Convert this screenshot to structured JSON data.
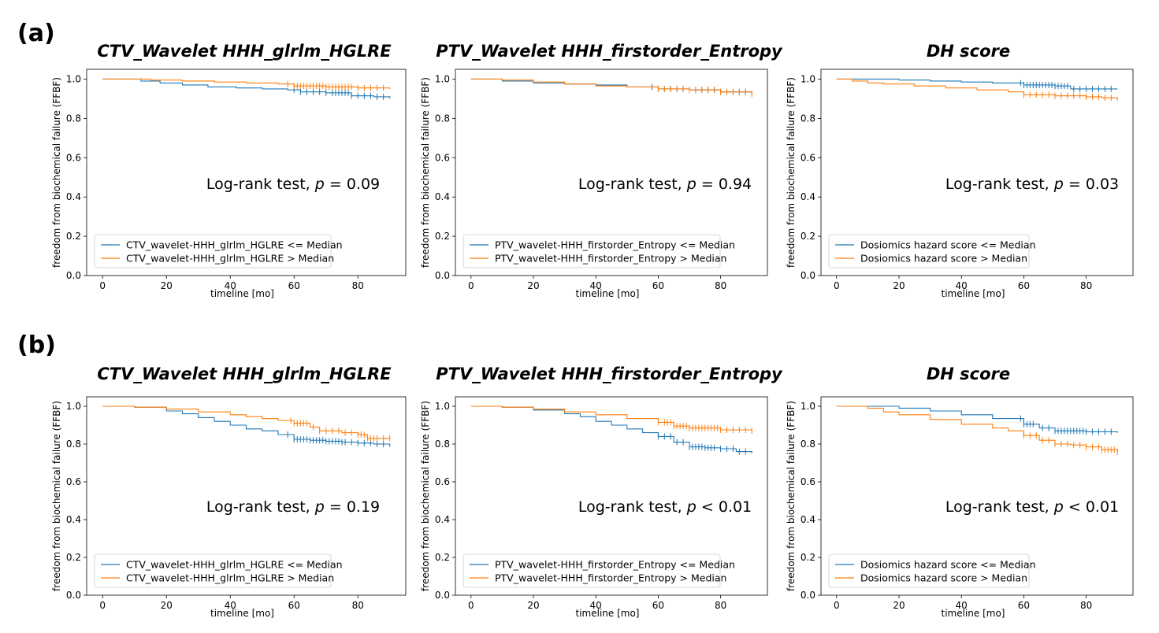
{
  "row_labels": [
    "(a)",
    "(b)"
  ],
  "colors": {
    "below": "#1f77b4",
    "above": "#ff7f0e",
    "axis": "#000000"
  },
  "chart_data": [
    {
      "type": "line",
      "row": 0,
      "col": 0,
      "title": "CTV_Wavelet HHH_glrlm_HGLRE",
      "xlabel": "timeline [mo]",
      "ylabel": "freedom from biochemical failure (FFBF)",
      "xlim": [
        -5,
        95
      ],
      "ylim": [
        0,
        1.05
      ],
      "xticks": [
        0,
        20,
        40,
        60,
        80
      ],
      "yticks": [
        0.0,
        0.2,
        0.4,
        0.6,
        0.8,
        1.0
      ],
      "xtick_labels": [
        "0",
        "20",
        "40",
        "60",
        "80"
      ],
      "ytick_labels": [
        "0.0",
        "0.2",
        "0.4",
        "0.6",
        "0.8",
        "1.0"
      ],
      "annotation": {
        "prefix": "Log-rank test, ",
        "p": "p",
        "suffix": " = 0.09"
      },
      "legend_position": "lower-left",
      "series": [
        {
          "name": "CTV_wavelet-HHH_glrlm_HGLRE <= Median",
          "color": "#1f77b4",
          "x": [
            0,
            12,
            18,
            25,
            33,
            42,
            50,
            58,
            62,
            70,
            78,
            85,
            90
          ],
          "y": [
            1.0,
            0.99,
            0.98,
            0.97,
            0.96,
            0.955,
            0.95,
            0.945,
            0.935,
            0.93,
            0.915,
            0.91,
            0.9
          ],
          "censor_x": [
            60,
            62,
            64,
            66,
            68,
            70,
            72,
            73,
            74,
            75,
            76,
            77,
            78,
            80,
            82,
            84,
            86,
            88
          ]
        },
        {
          "name": "CTV_wavelet-HHH_glrlm_HGLRE > Median",
          "color": "#ff7f0e",
          "x": [
            0,
            15,
            25,
            35,
            45,
            55,
            60,
            70,
            80,
            90
          ],
          "y": [
            1.0,
            0.995,
            0.99,
            0.985,
            0.98,
            0.975,
            0.965,
            0.96,
            0.955,
            0.95
          ],
          "censor_x": [
            58,
            60,
            61,
            62,
            63,
            64,
            65,
            66,
            67,
            68,
            69,
            70,
            71,
            72,
            73,
            74,
            75,
            76,
            77,
            78,
            80,
            82,
            84,
            86,
            88
          ]
        }
      ]
    },
    {
      "type": "line",
      "row": 0,
      "col": 1,
      "title": "PTV_Wavelet HHH_firstorder_Entropy",
      "xlabel": "timeline [mo]",
      "ylabel": "freedom from biochemical failure (FFBF)",
      "xlim": [
        -5,
        95
      ],
      "ylim": [
        0,
        1.05
      ],
      "xticks": [
        0,
        20,
        40,
        60,
        80
      ],
      "yticks": [
        0.0,
        0.2,
        0.4,
        0.6,
        0.8,
        1.0
      ],
      "xtick_labels": [
        "0",
        "20",
        "40",
        "60",
        "80"
      ],
      "ytick_labels": [
        "0.0",
        "0.2",
        "0.4",
        "0.6",
        "0.8",
        "1.0"
      ],
      "annotation": {
        "prefix": "Log-rank test, ",
        "p": "p",
        "suffix": " = 0.94"
      },
      "legend_position": "lower-left",
      "series": [
        {
          "name": "PTV_wavelet-HHH_firstorder_Entropy <= Median",
          "color": "#1f77b4",
          "x": [
            0,
            10,
            20,
            30,
            40,
            50,
            60,
            70,
            80,
            90
          ],
          "y": [
            1.0,
            0.99,
            0.98,
            0.975,
            0.97,
            0.96,
            0.95,
            0.945,
            0.935,
            0.925
          ],
          "censor_x": [
            58,
            60,
            62,
            64,
            66,
            68,
            70,
            72,
            74,
            76,
            78,
            80,
            82,
            84,
            86,
            88
          ]
        },
        {
          "name": "PTV_wavelet-HHH_firstorder_Entropy > Median",
          "color": "#ff7f0e",
          "x": [
            0,
            10,
            20,
            30,
            40,
            50,
            60,
            70,
            80,
            90
          ],
          "y": [
            1.0,
            0.995,
            0.985,
            0.975,
            0.965,
            0.96,
            0.95,
            0.945,
            0.935,
            0.925
          ],
          "censor_x": [
            60,
            62,
            64,
            66,
            68,
            70,
            72,
            74,
            76,
            78,
            80,
            82,
            84,
            86,
            88,
            90
          ]
        }
      ]
    },
    {
      "type": "line",
      "row": 0,
      "col": 2,
      "title": "DH score",
      "xlabel": "timeline [mo]",
      "ylabel": "freedom from biochemical failure (FFBF)",
      "xlim": [
        -5,
        95
      ],
      "ylim": [
        0,
        1.05
      ],
      "xticks": [
        0,
        20,
        40,
        60,
        80
      ],
      "yticks": [
        0.0,
        0.2,
        0.4,
        0.6,
        0.8,
        1.0
      ],
      "xtick_labels": [
        "0",
        "20",
        "40",
        "60",
        "80"
      ],
      "ytick_labels": [
        "0.0",
        "0.2",
        "0.4",
        "0.6",
        "0.8",
        "1.0"
      ],
      "annotation": {
        "prefix": "Log-rank test, ",
        "p": "p",
        "suffix": " = 0.03"
      },
      "legend_position": "lower-left",
      "series": [
        {
          "name": "Dosiomics hazard score <= Median",
          "color": "#1f77b4",
          "x": [
            0,
            10,
            20,
            30,
            40,
            50,
            60,
            70,
            75,
            90
          ],
          "y": [
            1.0,
            1.0,
            0.995,
            0.99,
            0.985,
            0.98,
            0.97,
            0.965,
            0.95,
            0.95
          ],
          "censor_x": [
            59,
            60,
            61,
            62,
            63,
            64,
            65,
            66,
            67,
            68,
            69,
            70,
            71,
            72,
            73,
            74,
            76,
            78,
            80,
            82,
            84,
            86,
            88
          ]
        },
        {
          "name": "Dosiomics hazard score > Median",
          "color": "#ff7f0e",
          "x": [
            0,
            5,
            10,
            15,
            25,
            35,
            45,
            55,
            60,
            70,
            80,
            85,
            90
          ],
          "y": [
            1.0,
            0.99,
            0.98,
            0.975,
            0.965,
            0.955,
            0.945,
            0.935,
            0.92,
            0.915,
            0.91,
            0.905,
            0.89
          ],
          "censor_x": [
            60,
            62,
            64,
            66,
            68,
            70,
            72,
            74,
            76,
            78,
            80,
            82,
            84,
            86,
            88
          ]
        }
      ]
    },
    {
      "type": "line",
      "row": 1,
      "col": 0,
      "title": "CTV_Wavelet HHH_glrlm_HGLRE",
      "xlabel": "timeline [mo]",
      "ylabel": "freedom from biochemical failure (FFBF)",
      "xlim": [
        -5,
        95
      ],
      "ylim": [
        0,
        1.05
      ],
      "xticks": [
        0,
        20,
        40,
        60,
        80
      ],
      "yticks": [
        0.0,
        0.2,
        0.4,
        0.6,
        0.8,
        1.0
      ],
      "xtick_labels": [
        "0",
        "20",
        "40",
        "60",
        "80"
      ],
      "ytick_labels": [
        "0.0",
        "0.2",
        "0.4",
        "0.6",
        "0.8",
        "1.0"
      ],
      "annotation": {
        "prefix": "Log-rank test, ",
        "p": "p",
        "suffix": " = 0.19"
      },
      "legend_position": "lower-left",
      "series": [
        {
          "name": "CTV_wavelet-HHH_glrlm_HGLRE <= Median",
          "color": "#1f77b4",
          "x": [
            0,
            10,
            20,
            25,
            30,
            35,
            40,
            45,
            50,
            55,
            60,
            65,
            70,
            75,
            80,
            85,
            90
          ],
          "y": [
            1.0,
            0.995,
            0.975,
            0.96,
            0.94,
            0.92,
            0.9,
            0.88,
            0.87,
            0.85,
            0.825,
            0.82,
            0.815,
            0.81,
            0.805,
            0.8,
            0.785
          ],
          "censor_x": [
            58,
            60,
            61,
            62,
            63,
            64,
            65,
            66,
            67,
            68,
            69,
            70,
            71,
            72,
            73,
            74,
            75,
            76,
            78,
            80,
            82,
            84,
            86,
            88
          ]
        },
        {
          "name": "CTV_wavelet-HHH_glrlm_HGLRE > Median",
          "color": "#ff7f0e",
          "x": [
            0,
            10,
            20,
            30,
            40,
            45,
            50,
            55,
            60,
            65,
            68,
            75,
            80,
            83,
            90
          ],
          "y": [
            1.0,
            0.995,
            0.985,
            0.97,
            0.955,
            0.945,
            0.935,
            0.925,
            0.91,
            0.89,
            0.87,
            0.86,
            0.85,
            0.83,
            0.83
          ],
          "censor_x": [
            59,
            60,
            61,
            62,
            63,
            64,
            66,
            68,
            70,
            72,
            74,
            76,
            78,
            80,
            81,
            82,
            83,
            84,
            85,
            86,
            88,
            90
          ]
        }
      ]
    },
    {
      "type": "line",
      "row": 1,
      "col": 1,
      "title": "PTV_Wavelet HHH_firstorder_Entropy",
      "xlabel": "timeline [mo]",
      "ylabel": "freedom from biochemical failure (FFBF)",
      "xlim": [
        -5,
        95
      ],
      "ylim": [
        0,
        1.05
      ],
      "xticks": [
        0,
        20,
        40,
        60,
        80
      ],
      "yticks": [
        0.0,
        0.2,
        0.4,
        0.6,
        0.8,
        1.0
      ],
      "xtick_labels": [
        "0",
        "20",
        "40",
        "60",
        "80"
      ],
      "ytick_labels": [
        "0.0",
        "0.2",
        "0.4",
        "0.6",
        "0.8",
        "1.0"
      ],
      "annotation": {
        "prefix": "Log-rank test, ",
        "p": "p",
        "suffix": " < 0.01"
      },
      "legend_position": "lower-left",
      "series": [
        {
          "name": "PTV_wavelet-HHH_firstorder_Entropy <= Median",
          "color": "#1f77b4",
          "x": [
            0,
            10,
            20,
            30,
            35,
            40,
            45,
            50,
            55,
            60,
            65,
            70,
            75,
            80,
            85,
            90
          ],
          "y": [
            1.0,
            0.995,
            0.98,
            0.96,
            0.945,
            0.92,
            0.9,
            0.88,
            0.86,
            0.84,
            0.81,
            0.785,
            0.78,
            0.775,
            0.76,
            0.75
          ],
          "censor_x": [
            60,
            62,
            64,
            66,
            68,
            70,
            71,
            72,
            73,
            74,
            75,
            76,
            77,
            78,
            80,
            82,
            84,
            86,
            88
          ]
        },
        {
          "name": "PTV_wavelet-HHH_firstorder_Entropy > Median",
          "color": "#ff7f0e",
          "x": [
            0,
            10,
            20,
            30,
            40,
            50,
            60,
            65,
            70,
            80,
            90
          ],
          "y": [
            1.0,
            0.995,
            0.985,
            0.97,
            0.955,
            0.935,
            0.915,
            0.895,
            0.885,
            0.875,
            0.87
          ],
          "censor_x": [
            60,
            62,
            63,
            64,
            65,
            66,
            67,
            68,
            69,
            70,
            71,
            72,
            73,
            74,
            75,
            76,
            77,
            78,
            79,
            80,
            82,
            84,
            86,
            88,
            90
          ]
        }
      ]
    },
    {
      "type": "line",
      "row": 1,
      "col": 2,
      "title": "DH score",
      "xlabel": "timeline [mo]",
      "ylabel": "freedom from biochemical failure (FFBF)",
      "xlim": [
        -5,
        95
      ],
      "ylim": [
        0,
        1.05
      ],
      "xticks": [
        0,
        20,
        40,
        60,
        80
      ],
      "yticks": [
        0.0,
        0.2,
        0.4,
        0.6,
        0.8,
        1.0
      ],
      "xtick_labels": [
        "0",
        "20",
        "40",
        "60",
        "80"
      ],
      "ytick_labels": [
        "0.0",
        "0.2",
        "0.4",
        "0.6",
        "0.8",
        "1.0"
      ],
      "annotation": {
        "prefix": "Log-rank test, ",
        "p": "p",
        "suffix": " < 0.01"
      },
      "legend_position": "lower-left",
      "series": [
        {
          "name": "Dosiomics hazard score <= Median",
          "color": "#1f77b4",
          "x": [
            0,
            10,
            20,
            30,
            40,
            50,
            60,
            65,
            70,
            80,
            90
          ],
          "y": [
            1.0,
            1.0,
            0.99,
            0.975,
            0.955,
            0.935,
            0.905,
            0.885,
            0.87,
            0.865,
            0.86
          ],
          "censor_x": [
            59,
            60,
            61,
            62,
            63,
            66,
            68,
            70,
            71,
            72,
            73,
            74,
            75,
            76,
            77,
            78,
            79,
            80,
            82,
            84,
            86,
            88
          ]
        },
        {
          "name": "Dosiomics hazard score > Median",
          "color": "#ff7f0e",
          "x": [
            0,
            10,
            15,
            20,
            30,
            40,
            50,
            55,
            60,
            65,
            70,
            75,
            80,
            85,
            90
          ],
          "y": [
            1.0,
            0.99,
            0.97,
            0.955,
            0.93,
            0.905,
            0.885,
            0.87,
            0.845,
            0.82,
            0.8,
            0.795,
            0.785,
            0.77,
            0.76
          ],
          "censor_x": [
            60,
            62,
            64,
            66,
            68,
            70,
            72,
            74,
            76,
            78,
            80,
            82,
            84,
            85,
            86,
            87,
            88,
            89,
            90
          ]
        }
      ]
    }
  ]
}
